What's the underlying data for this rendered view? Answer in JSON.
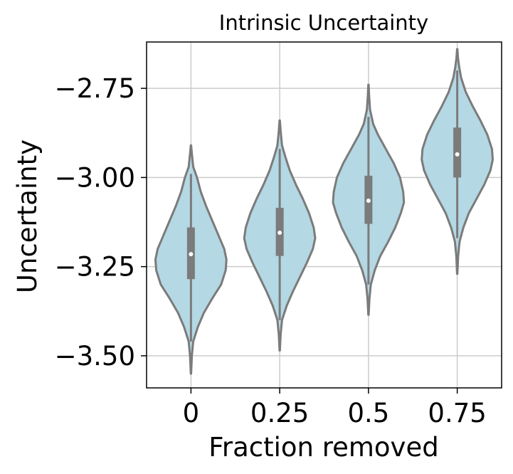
{
  "chart_data": {
    "type": "violin",
    "title": "Intrinsic Uncertainty",
    "xlabel": "Fraction removed",
    "ylabel": "Uncertainty",
    "categories": [
      "0",
      "0.25",
      "0.5",
      "0.75"
    ],
    "ylim": [
      -3.59,
      -2.62
    ],
    "yticks": [
      -3.5,
      -3.25,
      -3.0,
      -2.75
    ],
    "ytick_labels": [
      "−3.50",
      "−3.25",
      "−3.00",
      "−2.75"
    ],
    "grid": true,
    "colors": {
      "fill": "#b4d8e4",
      "outline": "#7b7b7b",
      "box": "#7b7b7b",
      "median": "#ffffff",
      "grid": "#cccccc"
    },
    "violins": [
      {
        "category": "0",
        "min": -3.55,
        "max": -2.91,
        "q1": -3.285,
        "median": -3.215,
        "q3": -3.14,
        "whisker_low": -3.46,
        "whisker_high": -2.99,
        "profile": [
          [
            -3.55,
            0.002
          ],
          [
            -3.5,
            0.012
          ],
          [
            -3.46,
            0.03
          ],
          [
            -3.42,
            0.09
          ],
          [
            -3.38,
            0.17
          ],
          [
            -3.34,
            0.28
          ],
          [
            -3.3,
            0.4
          ],
          [
            -3.26,
            0.46
          ],
          [
            -3.23,
            0.47
          ],
          [
            -3.2,
            0.44
          ],
          [
            -3.16,
            0.36
          ],
          [
            -3.12,
            0.28
          ],
          [
            -3.08,
            0.2
          ],
          [
            -3.04,
            0.13
          ],
          [
            -3.0,
            0.08
          ],
          [
            -2.97,
            0.03
          ],
          [
            -2.94,
            0.015
          ],
          [
            -2.91,
            0.002
          ]
        ]
      },
      {
        "category": "0.25",
        "min": -3.485,
        "max": -2.84,
        "q1": -3.22,
        "median": -3.155,
        "q3": -3.085,
        "whisker_low": -3.4,
        "whisker_high": -2.92,
        "profile": [
          [
            -3.485,
            0.002
          ],
          [
            -3.44,
            0.012
          ],
          [
            -3.4,
            0.03
          ],
          [
            -3.36,
            0.09
          ],
          [
            -3.32,
            0.17
          ],
          [
            -3.28,
            0.26
          ],
          [
            -3.24,
            0.35
          ],
          [
            -3.2,
            0.43
          ],
          [
            -3.17,
            0.46
          ],
          [
            -3.14,
            0.44
          ],
          [
            -3.1,
            0.38
          ],
          [
            -3.06,
            0.3
          ],
          [
            -3.02,
            0.21
          ],
          [
            -2.98,
            0.13
          ],
          [
            -2.94,
            0.07
          ],
          [
            -2.91,
            0.03
          ],
          [
            -2.87,
            0.012
          ],
          [
            -2.84,
            0.002
          ]
        ]
      },
      {
        "category": "0.5",
        "min": -3.385,
        "max": -2.74,
        "q1": -3.13,
        "median": -3.065,
        "q3": -2.995,
        "whisker_low": -3.3,
        "whisker_high": -2.83,
        "profile": [
          [
            -3.385,
            0.002
          ],
          [
            -3.34,
            0.012
          ],
          [
            -3.3,
            0.03
          ],
          [
            -3.26,
            0.08
          ],
          [
            -3.22,
            0.15
          ],
          [
            -3.18,
            0.25
          ],
          [
            -3.14,
            0.34
          ],
          [
            -3.1,
            0.41
          ],
          [
            -3.07,
            0.45
          ],
          [
            -3.04,
            0.44
          ],
          [
            -3.0,
            0.4
          ],
          [
            -2.96,
            0.32
          ],
          [
            -2.92,
            0.22
          ],
          [
            -2.88,
            0.12
          ],
          [
            -2.85,
            0.06
          ],
          [
            -2.81,
            0.02
          ],
          [
            -2.77,
            0.008
          ],
          [
            -2.74,
            0.002
          ]
        ]
      },
      {
        "category": "0.75",
        "min": -3.27,
        "max": -2.64,
        "q1": -3.0,
        "median": -2.935,
        "q3": -2.86,
        "whisker_low": -3.17,
        "whisker_high": -2.7,
        "profile": [
          [
            -3.27,
            0.002
          ],
          [
            -3.22,
            0.012
          ],
          [
            -3.18,
            0.03
          ],
          [
            -3.14,
            0.08
          ],
          [
            -3.1,
            0.15
          ],
          [
            -3.06,
            0.25
          ],
          [
            -3.02,
            0.35
          ],
          [
            -2.98,
            0.43
          ],
          [
            -2.95,
            0.46
          ],
          [
            -2.92,
            0.45
          ],
          [
            -2.88,
            0.39
          ],
          [
            -2.84,
            0.3
          ],
          [
            -2.8,
            0.2
          ],
          [
            -2.76,
            0.11
          ],
          [
            -2.72,
            0.05
          ],
          [
            -2.69,
            0.025
          ],
          [
            -2.665,
            0.01
          ],
          [
            -2.64,
            0.002
          ]
        ]
      }
    ]
  }
}
